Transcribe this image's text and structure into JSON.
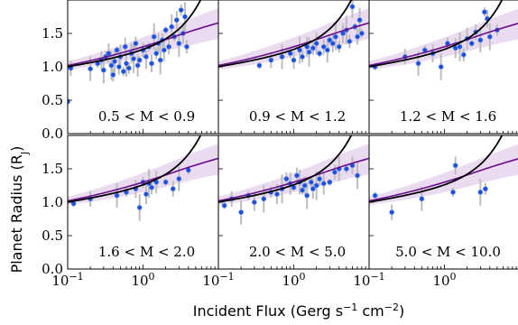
{
  "figure": {
    "ylabel": "Planet Radius (R",
    "ylabel_sub": "J",
    "ylabel_close": ")",
    "xlabel_main": "Incident Flux (Gerg s",
    "xlabel_mid": " cm",
    "xlabel_close": ")",
    "xlabel_sup1": "−1",
    "xlabel_sup2": "−2"
  },
  "colors": {
    "points": "#1f4fd6",
    "errorbars": "#bdbdbd",
    "band": "#e6d2ee",
    "line_purple": "#6a0f8e",
    "line_black": "#000000"
  },
  "chart_data": [
    {
      "type": "scatter",
      "label": "0.5 < M < 0.9",
      "xscale": "log",
      "xlim": [
        0.1,
        10.0
      ],
      "ylim": [
        0.0,
        2.0
      ],
      "yticks": [
        "1.5",
        "1.0",
        "0.5",
        "0.0"
      ],
      "xticks": [],
      "points": [
        [
          0.1,
          0.48
        ],
        [
          0.11,
          0.98
        ],
        [
          0.2,
          0.97
        ],
        [
          0.25,
          1.05
        ],
        [
          0.28,
          1.1
        ],
        [
          0.3,
          0.95
        ],
        [
          0.32,
          1.15
        ],
        [
          0.35,
          1.2
        ],
        [
          0.38,
          1.02
        ],
        [
          0.4,
          0.88
        ],
        [
          0.42,
          1.08
        ],
        [
          0.45,
          1.25
        ],
        [
          0.48,
          1.0
        ],
        [
          0.5,
          1.15
        ],
        [
          0.55,
          0.93
        ],
        [
          0.58,
          1.3
        ],
        [
          0.6,
          1.05
        ],
        [
          0.65,
          0.98
        ],
        [
          0.7,
          1.2
        ],
        [
          0.75,
          1.12
        ],
        [
          0.8,
          1.35
        ],
        [
          0.85,
          1.02
        ],
        [
          0.9,
          1.1
        ],
        [
          1.0,
          1.25
        ],
        [
          1.1,
          1.15
        ],
        [
          1.2,
          1.3
        ],
        [
          1.3,
          1.05
        ],
        [
          1.4,
          1.45
        ],
        [
          1.5,
          1.2
        ],
        [
          1.6,
          1.35
        ],
        [
          1.7,
          1.1
        ],
        [
          1.8,
          1.4
        ],
        [
          1.9,
          1.25
        ],
        [
          2.0,
          1.55
        ],
        [
          2.2,
          1.3
        ],
        [
          2.4,
          1.6
        ],
        [
          2.6,
          1.45
        ],
        [
          2.8,
          1.7
        ],
        [
          3.0,
          1.35
        ],
        [
          3.2,
          1.85
        ],
        [
          3.4,
          1.5
        ],
        [
          3.6,
          1.75
        ],
        [
          3.8,
          1.3
        ]
      ]
    },
    {
      "type": "scatter",
      "label": "0.9 < M < 1.2",
      "xscale": "log",
      "xlim": [
        0.1,
        10.0
      ],
      "ylim": [
        0.0,
        2.0
      ],
      "yticks": [],
      "xticks": [],
      "points": [
        [
          0.35,
          1.02
        ],
        [
          0.5,
          1.1
        ],
        [
          0.7,
          1.15
        ],
        [
          0.9,
          1.2
        ],
        [
          1.0,
          1.1
        ],
        [
          1.2,
          1.25
        ],
        [
          1.3,
          1.15
        ],
        [
          1.5,
          1.3
        ],
        [
          1.6,
          1.22
        ],
        [
          1.8,
          1.28
        ],
        [
          2.0,
          1.35
        ],
        [
          2.2,
          1.2
        ],
        [
          2.5,
          1.3
        ],
        [
          2.8,
          1.25
        ],
        [
          3.0,
          1.4
        ],
        [
          3.3,
          1.35
        ],
        [
          3.6,
          1.45
        ],
        [
          4.0,
          1.3
        ],
        [
          4.5,
          1.5
        ],
        [
          5.0,
          1.55
        ],
        [
          5.5,
          1.38
        ],
        [
          6.0,
          1.9
        ],
        [
          6.5,
          1.6
        ],
        [
          7.0,
          1.45
        ],
        [
          7.5,
          1.7
        ],
        [
          8.0,
          1.5
        ]
      ]
    },
    {
      "type": "scatter",
      "label": "1.2 < M < 1.6",
      "xscale": "log",
      "xlim": [
        0.1,
        10.0
      ],
      "ylim": [
        0.0,
        2.0
      ],
      "yticks": [],
      "xticks": [],
      "points": [
        [
          0.12,
          1.0
        ],
        [
          0.3,
          1.15
        ],
        [
          0.45,
          1.05
        ],
        [
          0.55,
          1.25
        ],
        [
          0.7,
          1.2
        ],
        [
          0.9,
          1.0
        ],
        [
          1.1,
          1.35
        ],
        [
          1.4,
          1.28
        ],
        [
          1.6,
          1.3
        ],
        [
          1.8,
          1.18
        ],
        [
          2.0,
          1.42
        ],
        [
          2.3,
          1.35
        ],
        [
          2.6,
          1.52
        ],
        [
          3.0,
          1.4
        ],
        [
          3.4,
          1.82
        ],
        [
          3.7,
          1.72
        ],
        [
          4.0,
          1.45
        ],
        [
          5.0,
          1.55
        ]
      ]
    },
    {
      "type": "scatter",
      "label": "1.6 < M < 2.0",
      "xscale": "log",
      "xlim": [
        0.1,
        10.0
      ],
      "ylim": [
        0.0,
        2.0
      ],
      "yticks": [
        "1.5",
        "1.0",
        "0.5",
        "0.0"
      ],
      "xticks": [
        "10−1",
        "100"
      ],
      "points": [
        [
          0.12,
          0.98
        ],
        [
          0.2,
          1.05
        ],
        [
          0.45,
          1.1
        ],
        [
          0.6,
          1.15
        ],
        [
          0.8,
          1.2
        ],
        [
          0.9,
          0.92
        ],
        [
          1.0,
          1.3
        ],
        [
          1.1,
          1.12
        ],
        [
          1.2,
          1.28
        ],
        [
          1.3,
          1.22
        ],
        [
          1.5,
          1.3
        ],
        [
          2.0,
          1.3
        ],
        [
          2.5,
          1.2
        ],
        [
          3.0,
          1.35
        ],
        [
          4.0,
          1.48
        ]
      ]
    },
    {
      "type": "scatter",
      "label": "2.0 < M < 5.0",
      "xscale": "log",
      "xlim": [
        0.1,
        10.0
      ],
      "ylim": [
        0.0,
        2.0
      ],
      "yticks": [],
      "xticks": [
        "10−1",
        "100"
      ],
      "points": [
        [
          0.12,
          0.95
        ],
        [
          0.15,
          1.05
        ],
        [
          0.2,
          0.85
        ],
        [
          0.25,
          1.1
        ],
        [
          0.3,
          1.0
        ],
        [
          0.4,
          1.05
        ],
        [
          0.5,
          1.15
        ],
        [
          0.6,
          1.12
        ],
        [
          0.7,
          1.2
        ],
        [
          0.8,
          1.35
        ],
        [
          0.9,
          1.28
        ],
        [
          1.0,
          1.22
        ],
        [
          1.1,
          1.4
        ],
        [
          1.2,
          1.3
        ],
        [
          1.3,
          1.18
        ],
        [
          1.4,
          1.25
        ],
        [
          1.5,
          1.1
        ],
        [
          1.7,
          1.3
        ],
        [
          1.8,
          1.2
        ],
        [
          2.0,
          1.25
        ],
        [
          2.2,
          1.35
        ],
        [
          2.5,
          1.28
        ],
        [
          3.0,
          1.3
        ],
        [
          3.5,
          1.45
        ],
        [
          4.0,
          1.5
        ],
        [
          5.0,
          1.5
        ],
        [
          6.0,
          1.55
        ],
        [
          7.0,
          1.4
        ]
      ]
    },
    {
      "type": "scatter",
      "label": "5.0 < M < 10.0",
      "xscale": "log",
      "xlim": [
        0.1,
        10.0
      ],
      "ylim": [
        0.0,
        2.0
      ],
      "yticks": [],
      "xticks": [
        "10−1",
        "100"
      ],
      "points": [
        [
          0.12,
          1.1
        ],
        [
          0.2,
          0.85
        ],
        [
          0.5,
          1.05
        ],
        [
          1.3,
          1.15
        ],
        [
          1.4,
          1.55
        ],
        [
          3.0,
          1.15
        ],
        [
          3.5,
          1.2
        ]
      ]
    }
  ]
}
